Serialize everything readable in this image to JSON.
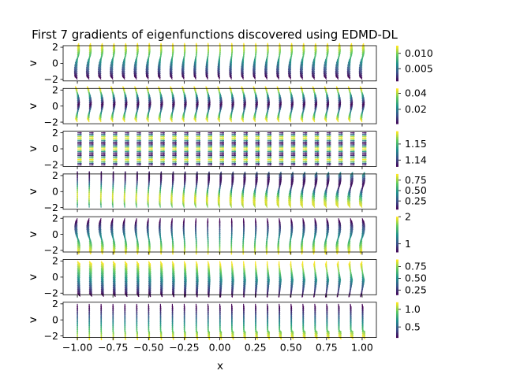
{
  "chart_data": {
    "type": "quiver",
    "title": "First 7 gradients of eigenfunctions discovered using EDMD-DL",
    "xlabel": "x",
    "ylabel": "v",
    "xlim": [
      -1.1,
      1.1
    ],
    "ylim": [
      -2.2,
      2.2
    ],
    "x_ticks": [
      "−1.00",
      "−0.75",
      "−0.50",
      "−0.25",
      "0.00",
      "0.25",
      "0.50",
      "0.75",
      "1.00"
    ],
    "x_tick_values": [
      -1.0,
      -0.75,
      -0.5,
      -0.25,
      0.0,
      0.25,
      0.5,
      0.75,
      1.0
    ],
    "y_ticks": [
      "−2",
      "0",
      "2"
    ],
    "y_tick_values": [
      -2,
      0,
      2
    ],
    "grid_columns": 25,
    "grid_rows": 25,
    "colormap": "viridis",
    "colormap_colors": [
      "#440154",
      "#3b528b",
      "#21918c",
      "#5ec962",
      "#fde725"
    ],
    "panels": [
      {
        "index": 1,
        "colorbar_ticks": [
          "0.010",
          "0.005"
        ],
        "colorbar_tick_values": [
          0.01,
          0.005
        ],
        "color_range": [
          0.001,
          0.0125
        ],
        "pattern": "s-curve-left"
      },
      {
        "index": 2,
        "colorbar_ticks": [
          "0.04",
          "0.02"
        ],
        "colorbar_tick_values": [
          0.04,
          0.02
        ],
        "color_range": [
          0.002,
          0.046
        ],
        "pattern": "u-bend"
      },
      {
        "index": 3,
        "colorbar_ticks": [
          "1.15",
          "1.14"
        ],
        "colorbar_tick_values": [
          1.15,
          1.14
        ],
        "color_range": [
          1.136,
          1.158
        ],
        "pattern": "bands"
      },
      {
        "index": 4,
        "colorbar_ticks": [
          "0.75",
          "0.50",
          "0.25"
        ],
        "colorbar_tick_values": [
          0.75,
          0.5,
          0.25
        ],
        "color_range": [
          0.05,
          0.9
        ],
        "pattern": "s-curve-right"
      },
      {
        "index": 5,
        "colorbar_ticks": [
          "2",
          "1"
        ],
        "colorbar_tick_values": [
          2,
          1
        ],
        "color_range": [
          0.7,
          2.0
        ],
        "pattern": "s-curve-mixed"
      },
      {
        "index": 6,
        "colorbar_ticks": [
          "0.75",
          "0.50",
          "0.25"
        ],
        "colorbar_tick_values": [
          0.75,
          0.5,
          0.25
        ],
        "color_range": [
          0.15,
          0.9
        ],
        "pattern": "c-curve"
      },
      {
        "index": 7,
        "colorbar_ticks": [
          "1.0",
          "0.5"
        ],
        "colorbar_tick_values": [
          1.0,
          0.5
        ],
        "color_range": [
          0.2,
          1.2
        ],
        "pattern": "l-curve"
      }
    ]
  }
}
